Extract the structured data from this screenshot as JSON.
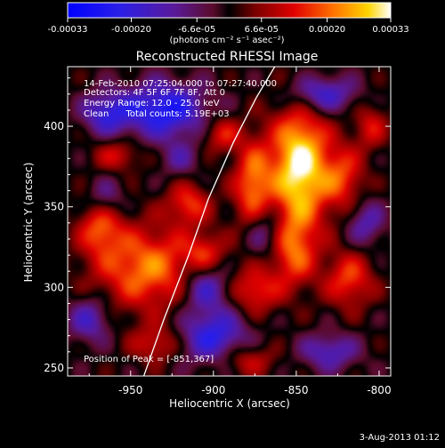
{
  "colorbar": {
    "ticks": [
      "-0.00033",
      "-0.00020",
      "-6.6e-05",
      "6.6e-05",
      "0.00020",
      "0.00033"
    ],
    "unit_label": "(photons cm⁻² s⁻¹ asec⁻²)",
    "range": [
      -0.00033,
      0.00033
    ],
    "tick_values": [
      -0.00033,
      -0.0002,
      -6.6e-05,
      6.6e-05,
      0.0002,
      0.00033
    ],
    "colors": [
      "#0000ff",
      "#3a10ff",
      "#6c1aa8",
      "#b00020",
      "#ff1a00",
      "#ff8a00",
      "#ffe000",
      "#ffffff"
    ]
  },
  "plot": {
    "title": "Reconstructed RHESSI Image",
    "info_lines": [
      "14-Feb-2010 07:25:04.000 to 07:27:40.000",
      "Detectors: 4F 5F 6F 7F 8F, Att 0",
      "Energy Range: 12.0 - 25.0 keV",
      "Clean      Total counts: 5.19E+03"
    ],
    "peak_label": "Position of Peak = [-851,367]",
    "footer_date": "3-Aug-2013 01:12"
  },
  "chart_data": {
    "type": "heatmap",
    "title": "Reconstructed RHESSI Image",
    "xlabel": "Heliocentric X (arcsec)",
    "ylabel": "Heliocentric Y (arcsec)",
    "xlim": [
      -988,
      -793
    ],
    "ylim": [
      245,
      437
    ],
    "xticks": [
      -950,
      -900,
      -850,
      -800
    ],
    "xtick_labels": [
      "-950",
      "-900",
      "-850",
      "-800"
    ],
    "yticks": [
      250,
      300,
      350,
      400
    ],
    "ytick_labels": [
      "250",
      "300",
      "350",
      "400"
    ],
    "peak_position": [
      -851,
      367
    ],
    "limb_curve": [
      [
        -942,
        245
      ],
      [
        -930,
        280
      ],
      [
        -915,
        320
      ],
      [
        -903,
        355
      ],
      [
        -888,
        390
      ],
      [
        -874,
        418
      ],
      [
        -863,
        437
      ]
    ],
    "blobs": [
      {
        "x": -848,
        "y": 375,
        "v": 0.00034,
        "sx": 12,
        "sy": 26
      },
      {
        "x": -876,
        "y": 362,
        "v": 0.00022,
        "sx": 8,
        "sy": 20
      },
      {
        "x": -940,
        "y": 312,
        "v": 0.00022,
        "sx": 22,
        "sy": 18
      },
      {
        "x": -968,
        "y": 338,
        "v": 0.00018,
        "sx": 9,
        "sy": 12
      },
      {
        "x": -915,
        "y": 352,
        "v": 0.00016,
        "sx": 9,
        "sy": 9
      },
      {
        "x": -852,
        "y": 322,
        "v": 0.00018,
        "sx": 10,
        "sy": 16
      },
      {
        "x": -822,
        "y": 368,
        "v": 0.00016,
        "sx": 9,
        "sy": 14
      },
      {
        "x": -818,
        "y": 305,
        "v": 0.00017,
        "sx": 10,
        "sy": 12
      },
      {
        "x": -875,
        "y": 298,
        "v": 0.00016,
        "sx": 10,
        "sy": 10
      },
      {
        "x": -895,
        "y": 395,
        "v": 0.00014,
        "sx": 8,
        "sy": 8
      },
      {
        "x": -935,
        "y": 265,
        "v": 0.00013,
        "sx": 10,
        "sy": 8
      },
      {
        "x": -880,
        "y": 255,
        "v": 0.00012,
        "sx": 12,
        "sy": 7
      },
      {
        "x": -958,
        "y": 382,
        "v": 0.00012,
        "sx": 10,
        "sy": 7
      },
      {
        "x": -805,
        "y": 400,
        "v": 0.00012,
        "sx": 7,
        "sy": 10
      },
      {
        "x": -905,
        "y": 322,
        "v": 0.00012,
        "sx": 8,
        "sy": 8
      },
      {
        "x": -930,
        "y": 410,
        "v": -0.00026,
        "sx": 18,
        "sy": 12
      },
      {
        "x": -965,
        "y": 408,
        "v": -0.00018,
        "sx": 10,
        "sy": 9
      },
      {
        "x": -900,
        "y": 270,
        "v": -0.00022,
        "sx": 14,
        "sy": 12
      },
      {
        "x": -835,
        "y": 420,
        "v": -0.0002,
        "sx": 14,
        "sy": 8
      },
      {
        "x": -870,
        "y": 335,
        "v": -0.00016,
        "sx": 8,
        "sy": 12
      },
      {
        "x": -905,
        "y": 300,
        "v": -0.00018,
        "sx": 10,
        "sy": 10
      },
      {
        "x": -975,
        "y": 280,
        "v": -0.00016,
        "sx": 9,
        "sy": 10
      },
      {
        "x": -830,
        "y": 260,
        "v": -0.00016,
        "sx": 12,
        "sy": 8
      },
      {
        "x": -965,
        "y": 355,
        "v": -0.00012,
        "sx": 8,
        "sy": 9
      },
      {
        "x": -808,
        "y": 340,
        "v": -0.00014,
        "sx": 8,
        "sy": 10
      },
      {
        "x": -920,
        "y": 380,
        "v": -0.0001,
        "sx": 8,
        "sy": 8
      }
    ]
  }
}
